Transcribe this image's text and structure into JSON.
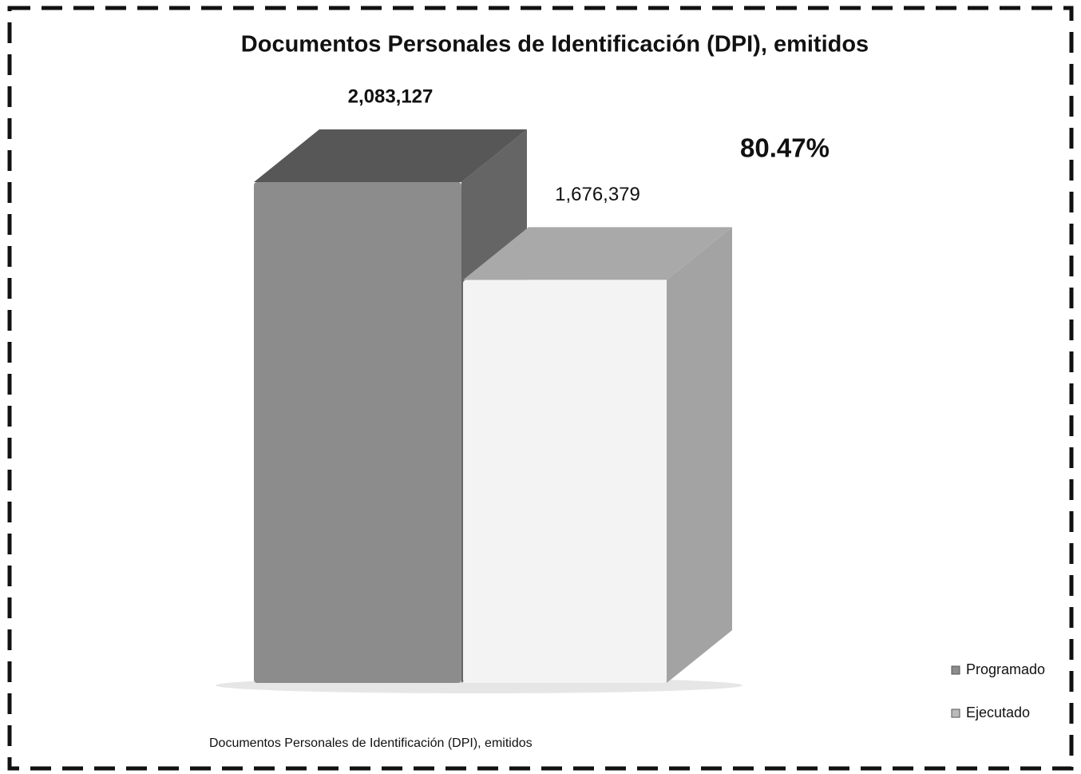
{
  "chart_data": {
    "type": "bar3d",
    "title": "Documentos Personales de Identificación (DPI), emitidos",
    "annotation": "80.47%",
    "categories": [
      "Documentos Personales de Identificación (DPI), emitidos"
    ],
    "series": [
      {
        "name": "Programado",
        "color": "#8c8c8c",
        "values": [
          2083127
        ],
        "value_labels": [
          "2,083,127"
        ]
      },
      {
        "name": "Ejecutado",
        "color": "#f3f3f3",
        "values": [
          1676379
        ],
        "value_labels": [
          "1,676,379"
        ]
      }
    ],
    "legend": "bottom-right"
  }
}
